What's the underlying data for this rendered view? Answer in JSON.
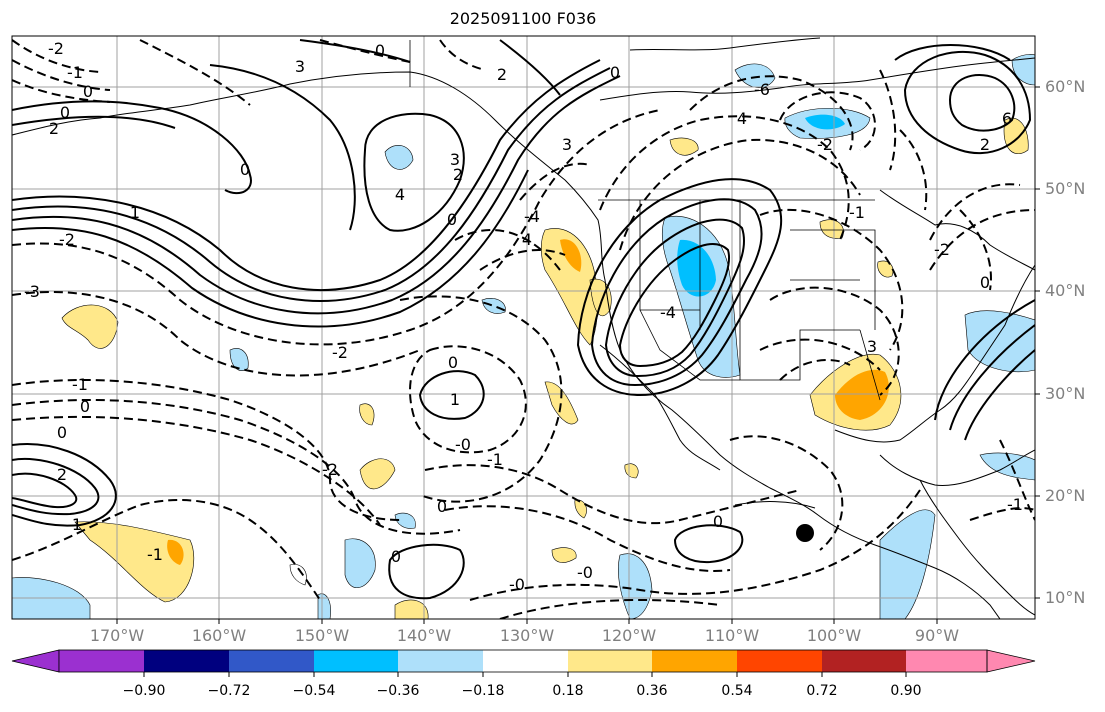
{
  "title": "2025091100 F036",
  "lat_labels": [
    "60°N",
    "50°N",
    "40°N",
    "30°N",
    "20°N",
    "10°N"
  ],
  "lon_labels": [
    "170°W",
    "160°W",
    "150°W",
    "140°W",
    "130°W",
    "120°W",
    "110°W",
    "100°W",
    "90°W"
  ],
  "colorbar": {
    "ticks": [
      "−0.90",
      "−0.72",
      "−0.54",
      "−0.36",
      "−0.18",
      "0.18",
      "0.36",
      "0.54",
      "0.72",
      "0.90"
    ],
    "colors": [
      "#9b30d0",
      "#00007f",
      "#3158c8",
      "#00bfff",
      "#aee0fa",
      "#ffffff",
      "#ffe88a",
      "#ffa500",
      "#ff4500",
      "#b22222",
      "#ff88b0"
    ]
  },
  "contour_labels": [
    "2",
    "1",
    "0",
    "2",
    "-2",
    "0",
    "3",
    "0",
    "4",
    "3",
    "2",
    "0",
    "-1",
    "0",
    "-2",
    "-3",
    "-2",
    "-0",
    "-1",
    "0",
    "-1",
    "0",
    "4",
    "-4",
    "0",
    "3",
    "1",
    "-2",
    "1",
    "0",
    "-0",
    "-1",
    "0",
    "-0",
    "0",
    "-6",
    "4",
    "-4",
    "6",
    "2",
    "0",
    "3",
    "-2",
    "-1",
    "0",
    "2",
    "-1",
    "-2"
  ],
  "marker": {
    "name": "storm-center",
    "color": "#000000"
  }
}
